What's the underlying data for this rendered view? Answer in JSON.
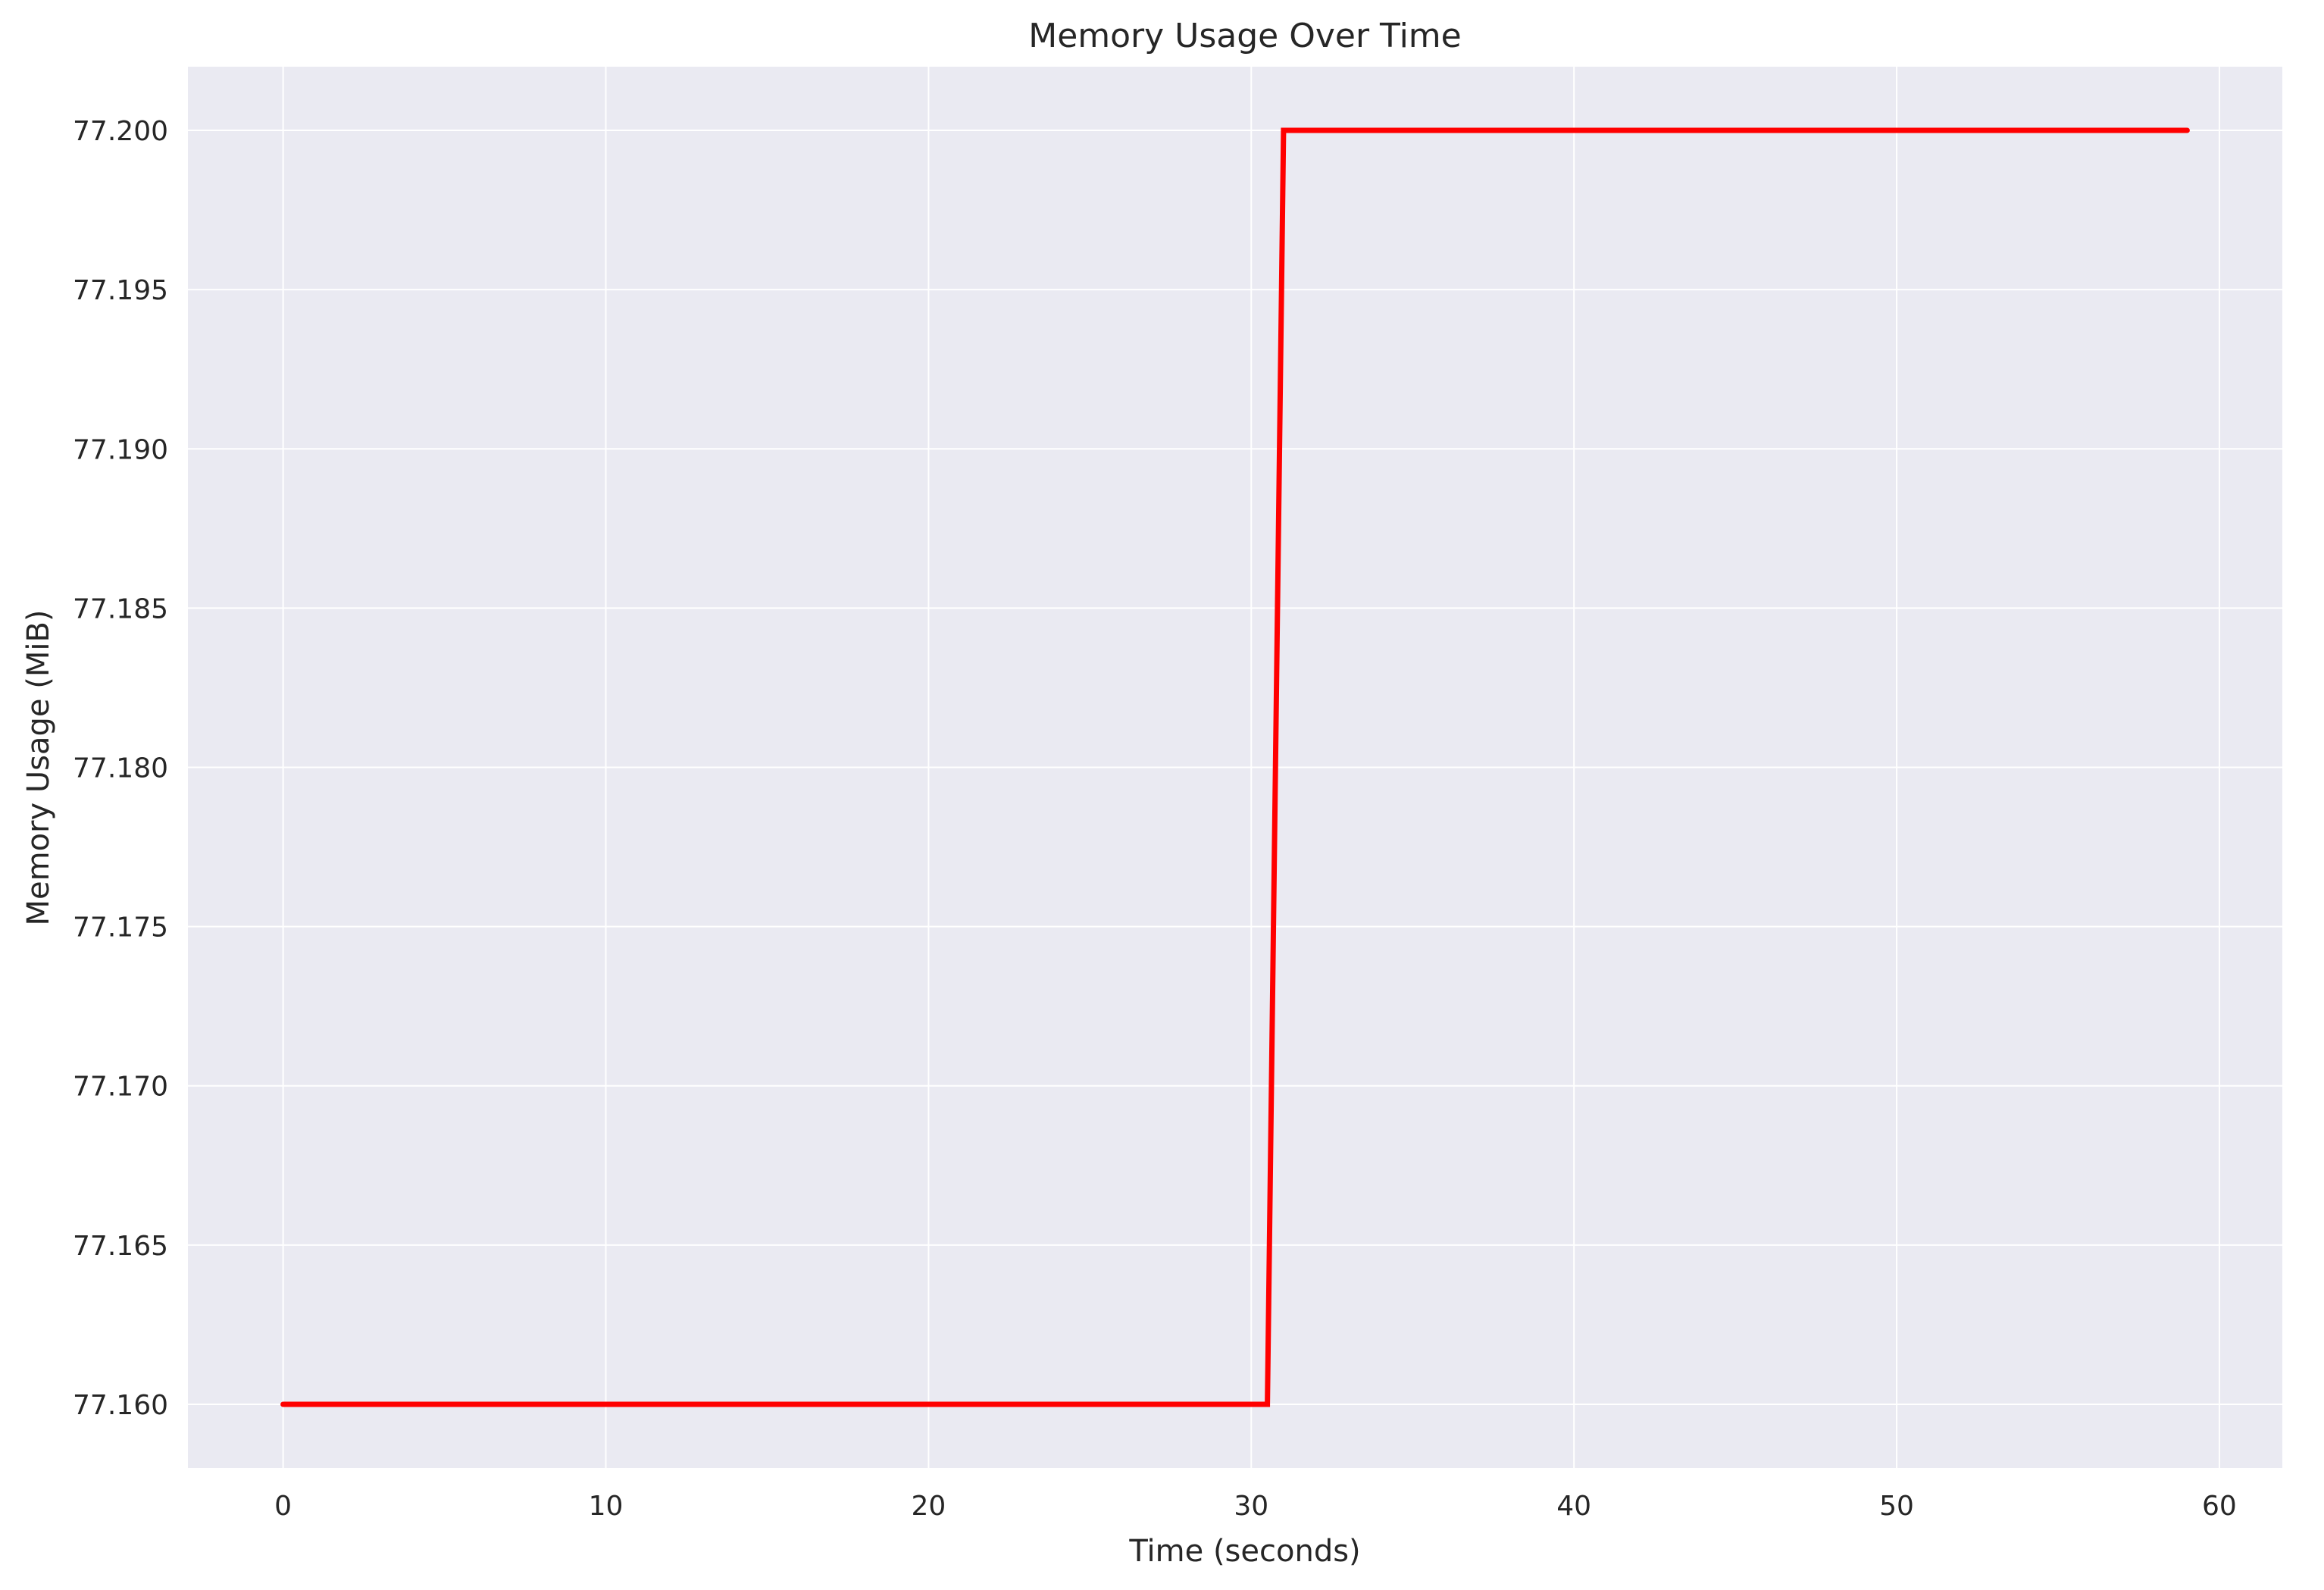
{
  "chart_data": {
    "type": "line",
    "title": "Memory Usage Over Time",
    "xlabel": "Time (seconds)",
    "ylabel": "Memory Usage (MiB)",
    "xlim": [
      -2.95,
      61.95
    ],
    "ylim": [
      77.158,
      77.202
    ],
    "xticks": [
      0,
      10,
      20,
      30,
      40,
      50,
      60
    ],
    "xtick_labels": [
      "0",
      "10",
      "20",
      "30",
      "40",
      "50",
      "60"
    ],
    "yticks": [
      77.16,
      77.165,
      77.17,
      77.175,
      77.18,
      77.185,
      77.19,
      77.195,
      77.2
    ],
    "ytick_labels": [
      "77.160",
      "77.165",
      "77.170",
      "77.175",
      "77.180",
      "77.185",
      "77.190",
      "77.195",
      "77.200"
    ],
    "grid": true,
    "series": [
      {
        "color": "#ff0000",
        "x": [
          0,
          30.5,
          31,
          59
        ],
        "y": [
          77.16,
          77.16,
          77.2,
          77.2
        ]
      }
    ],
    "colors": {
      "plot_background": "#eaeaf2",
      "grid": "#ffffff",
      "line": "#ff0000"
    }
  }
}
